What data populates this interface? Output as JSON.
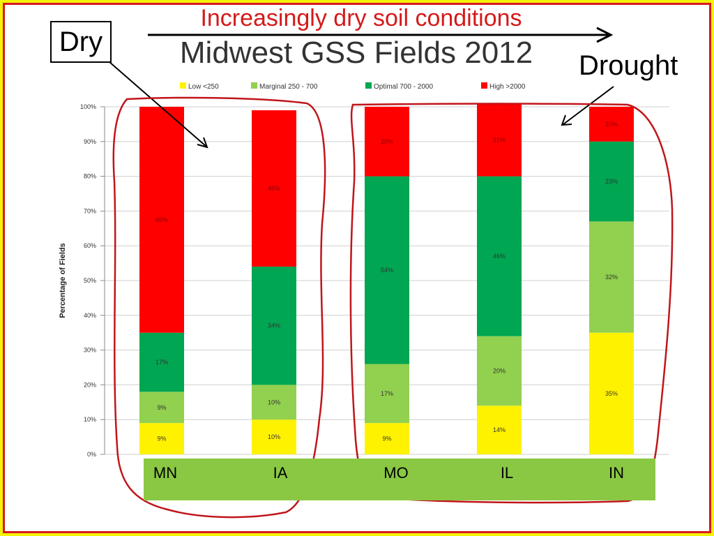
{
  "annotations": {
    "top_text": "Increasingly dry soil conditions",
    "dry_label": "Dry",
    "drought_label": "Drought"
  },
  "colors": {
    "low": "#fff200",
    "marginal": "#92d050",
    "optimal": "#00a651",
    "high": "#ff0000",
    "annotation_red": "#d41a1a",
    "background": "#f2f20a",
    "category_band": "#8ac844"
  },
  "chart_data": {
    "type": "bar",
    "stacked": true,
    "title": "Midwest GSS Fields 2012",
    "xlabel": "",
    "ylabel": "Percentage of Fields",
    "ylim": [
      0,
      100
    ],
    "y_ticks": [
      "0%",
      "10%",
      "20%",
      "30%",
      "40%",
      "50%",
      "60%",
      "70%",
      "80%",
      "90%",
      "100%"
    ],
    "grid": true,
    "legend_position": "top",
    "categories": [
      "MN",
      "IA",
      "MO",
      "IL",
      "IN"
    ],
    "series": [
      {
        "name": "Low <250",
        "color_key": "low",
        "values": [
          9,
          10,
          9,
          14,
          35
        ],
        "labels": [
          "9%",
          "10%",
          "9%",
          "14%",
          "35%"
        ]
      },
      {
        "name": "Marginal 250 - 700",
        "color_key": "marginal",
        "values": [
          9,
          10,
          17,
          20,
          32
        ],
        "labels": [
          "9%",
          "10%",
          "17%",
          "20%",
          "32%"
        ]
      },
      {
        "name": "Optimal 700 - 2000",
        "color_key": "optimal",
        "values": [
          17,
          34,
          54,
          46,
          23
        ],
        "labels": [
          "17%",
          "34%",
          "54%",
          "46%",
          "23%"
        ]
      },
      {
        "name": "High >2000",
        "color_key": "high",
        "values": [
          65,
          45,
          20,
          21,
          10
        ],
        "labels": [
          "65%",
          "45%",
          "20%",
          "21%",
          "10%"
        ]
      }
    ]
  }
}
